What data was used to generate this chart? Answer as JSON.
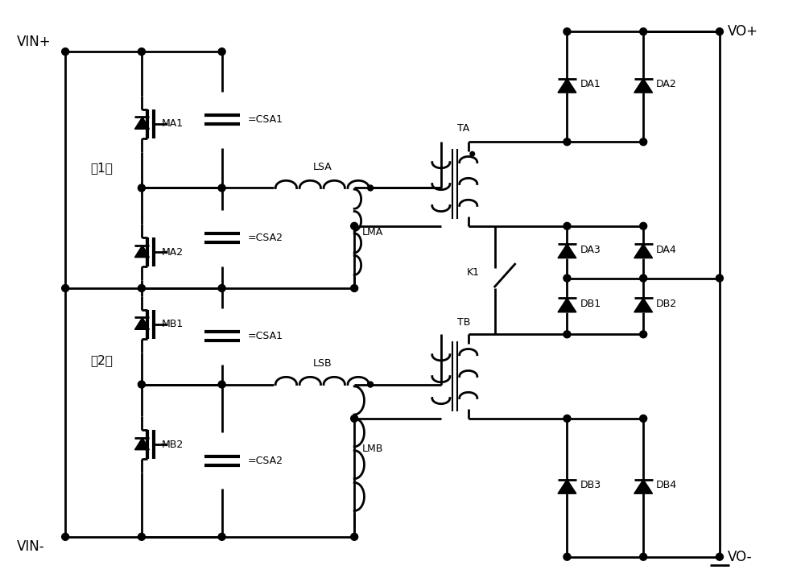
{
  "bg": "#ffffff",
  "lc": "#000000",
  "lw": 2.0,
  "fig_w": 10.0,
  "fig_h": 7.18,
  "dpi": 100,
  "labels": {
    "VIN_P": "VIN+",
    "VIN_N": "VIN-",
    "VO_P": "VO+",
    "VO_N": "VO-",
    "MA1": "MA1",
    "MA2": "MA2",
    "MB1": "MB1",
    "MB2": "MB2",
    "CSA1": "=CSA1",
    "CSA2": "=CSA2",
    "LSA": "LSA",
    "LMA": "LMA",
    "LSB": "LSB",
    "LMB": "LMB",
    "TA": "TA",
    "TB": "TB",
    "DA1": "DA1",
    "DA2": "DA2",
    "DA3": "DA3",
    "DA4": "DA4",
    "DB1": "DB1",
    "DB2": "DB2",
    "DB3": "DB3",
    "DB4": "DB4",
    "K1": "K1",
    "G1": "第1组",
    "G2": "第2组"
  }
}
